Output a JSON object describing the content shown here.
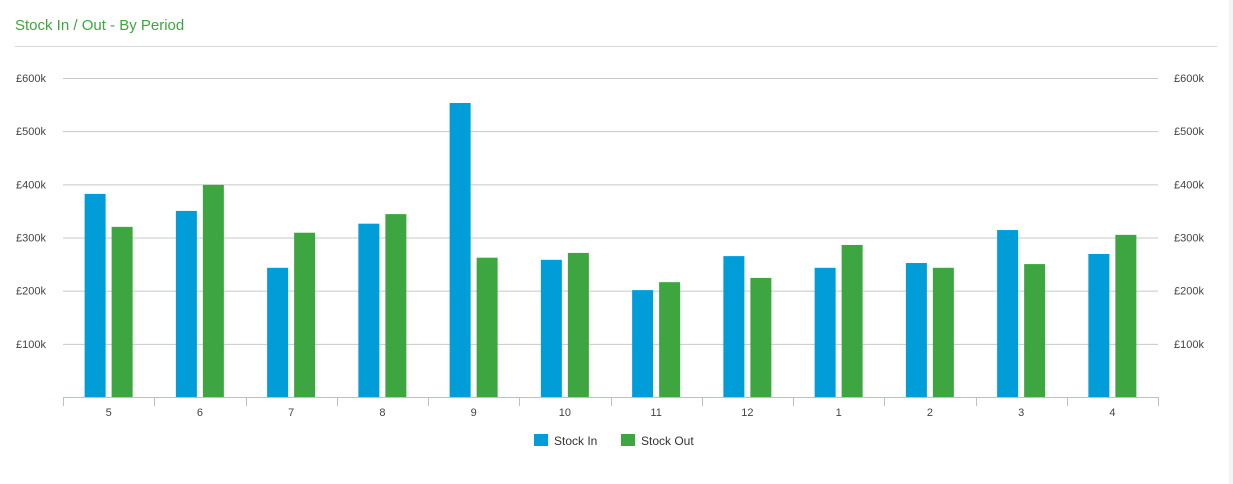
{
  "panel": {
    "title": "Stock In / Out - By Period"
  },
  "colors": {
    "title": "#3ea63e",
    "stock_in": "#009dd9",
    "stock_out": "#3ea640",
    "grid": "#c8c8c8",
    "axis": "#b8c2cc"
  },
  "chart_data": {
    "type": "bar",
    "categories": [
      "5",
      "6",
      "7",
      "8",
      "9",
      "10",
      "11",
      "12",
      "1",
      "2",
      "3",
      "4"
    ],
    "series": [
      {
        "name": "Stock In",
        "color": "#009dd9",
        "values": [
          382000,
          350000,
          243000,
          326000,
          553000,
          258000,
          201000,
          265000,
          243000,
          252000,
          314000,
          269000
        ]
      },
      {
        "name": "Stock Out",
        "color": "#3ea640",
        "values": [
          320000,
          399000,
          309000,
          344000,
          262000,
          271000,
          216000,
          224000,
          286000,
          243000,
          250000,
          305000
        ]
      }
    ],
    "ylim": [
      0,
      600000
    ],
    "yticks": [
      "£100k",
      "£200k",
      "£300k",
      "£400k",
      "£500k",
      "£600k"
    ],
    "ytick_values": [
      100000,
      200000,
      300000,
      400000,
      500000,
      600000
    ],
    "grid": true,
    "legend_position": "bottom",
    "dual_y_axis_labels": true
  }
}
